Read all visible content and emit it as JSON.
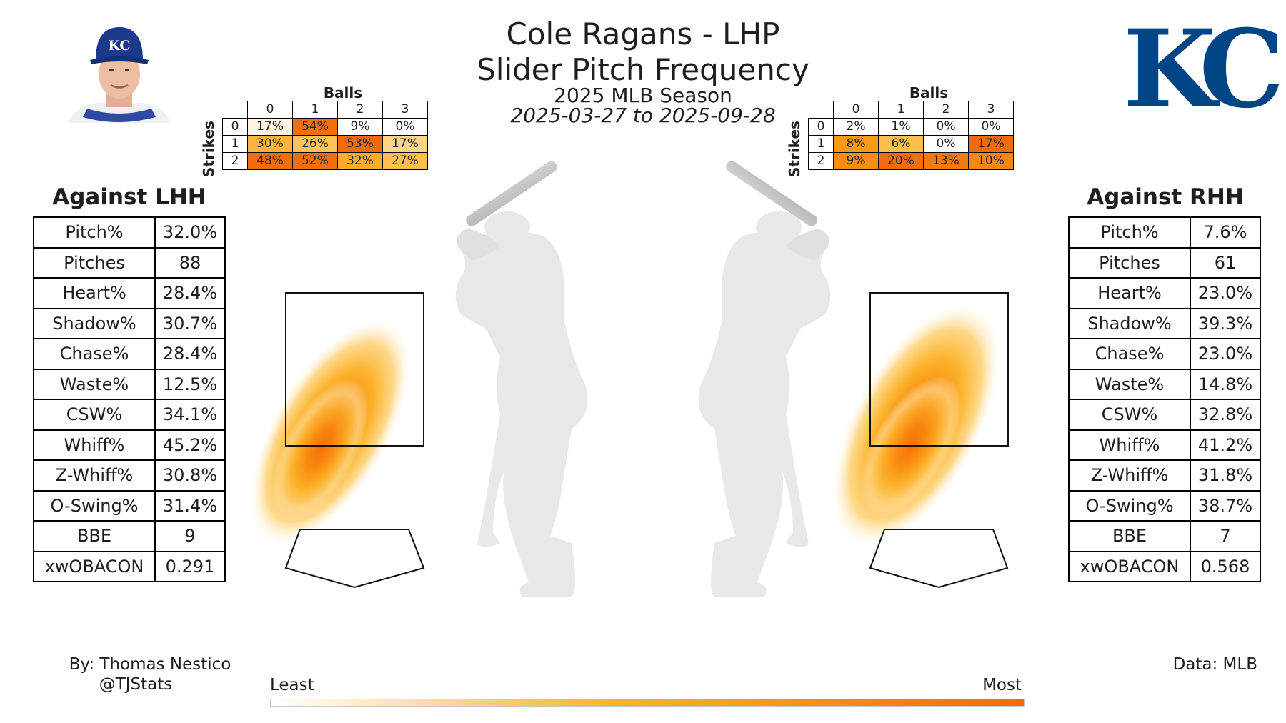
{
  "header": {
    "title_line1": "Cole Ragans - LHP",
    "title_line2": "Slider Pitch Frequency",
    "season": "2025 MLB Season",
    "date_range": "2025-03-27 to 2025-09-28"
  },
  "count_tables": {
    "balls_label": "Balls",
    "strikes_label": "Strikes",
    "ball_counts": [
      "0",
      "1",
      "2",
      "3"
    ],
    "strike_counts": [
      "0",
      "1",
      "2"
    ],
    "lhh": [
      [
        "17%",
        "54%",
        "9%",
        "0%"
      ],
      [
        "30%",
        "26%",
        "53%",
        "17%"
      ],
      [
        "48%",
        "52%",
        "32%",
        "27%"
      ]
    ],
    "rhh": [
      [
        "2%",
        "1%",
        "0%",
        "0%"
      ],
      [
        "8%",
        "6%",
        "0%",
        "17%"
      ],
      [
        "9%",
        "20%",
        "13%",
        "10%"
      ]
    ],
    "lhh_colors": [
      [
        "#fdf4e4",
        "#f07010",
        "#ffffff",
        "#ffffff"
      ],
      [
        "#fbb43c",
        "#fbc45a",
        "#f26a0c",
        "#fdd488"
      ],
      [
        "#f46d0c",
        "#f36e0e",
        "#fbae2a",
        "#fcc050"
      ]
    ],
    "rhh_colors": [
      [
        "#ffffff",
        "#ffffff",
        "#ffffff",
        "#ffffff"
      ],
      [
        "#fb9a16",
        "#fbbf50",
        "#ffffff",
        "#f26a0c"
      ],
      [
        "#f98e12",
        "#f46d0c",
        "#f67b0e",
        "#f8860f"
      ]
    ]
  },
  "left_panel": {
    "title": "Against LHH",
    "stats": [
      {
        "label": "Pitch%",
        "value": "32.0%"
      },
      {
        "label": "Pitches",
        "value": "88"
      },
      {
        "label": "Heart%",
        "value": "28.4%"
      },
      {
        "label": "Shadow%",
        "value": "30.7%"
      },
      {
        "label": "Chase%",
        "value": "28.4%"
      },
      {
        "label": "Waste%",
        "value": "12.5%"
      },
      {
        "label": "CSW%",
        "value": "34.1%"
      },
      {
        "label": "Whiff%",
        "value": "45.2%"
      },
      {
        "label": "Z-Whiff%",
        "value": "30.8%"
      },
      {
        "label": "O-Swing%",
        "value": "31.4%"
      },
      {
        "label": "BBE",
        "value": "9"
      },
      {
        "label": "xwOBACON",
        "value": "0.291"
      }
    ]
  },
  "right_panel": {
    "title": "Against RHH",
    "stats": [
      {
        "label": "Pitch%",
        "value": "7.6%"
      },
      {
        "label": "Pitches",
        "value": "61"
      },
      {
        "label": "Heart%",
        "value": "23.0%"
      },
      {
        "label": "Shadow%",
        "value": "39.3%"
      },
      {
        "label": "Chase%",
        "value": "23.0%"
      },
      {
        "label": "Waste%",
        "value": "14.8%"
      },
      {
        "label": "CSW%",
        "value": "32.8%"
      },
      {
        "label": "Whiff%",
        "value": "41.2%"
      },
      {
        "label": "Z-Whiff%",
        "value": "31.8%"
      },
      {
        "label": "O-Swing%",
        "value": "38.7%"
      },
      {
        "label": "BBE",
        "value": "7"
      },
      {
        "label": "xwOBACON",
        "value": "0.568"
      }
    ]
  },
  "footer": {
    "author_line1": "By: Thomas Nestico",
    "author_line2": "@TJStats",
    "data_source": "Data: MLB",
    "colorbar_low": "Least",
    "colorbar_high": "Most"
  },
  "logo": {
    "team": "KC",
    "color": "#004687"
  },
  "colors": {
    "density_low": "#fff3dc",
    "density_mid": "#fcb32c",
    "density_high": "#f56a07",
    "batter_fill": "#e8e8e8",
    "bat_fill": "#c4c4c4"
  },
  "chart_data": {
    "type": "heatmap",
    "title": "Slider Pitch Frequency",
    "legend": {
      "low": "Least",
      "high": "Most",
      "placement": "bottom"
    },
    "series": [
      {
        "side": "LHH",
        "density_peak_location": "low-inside of strike zone, extending below and inside"
      },
      {
        "side": "RHH",
        "density_peak_location": "low-inside of strike zone, extending below and away"
      }
    ]
  }
}
